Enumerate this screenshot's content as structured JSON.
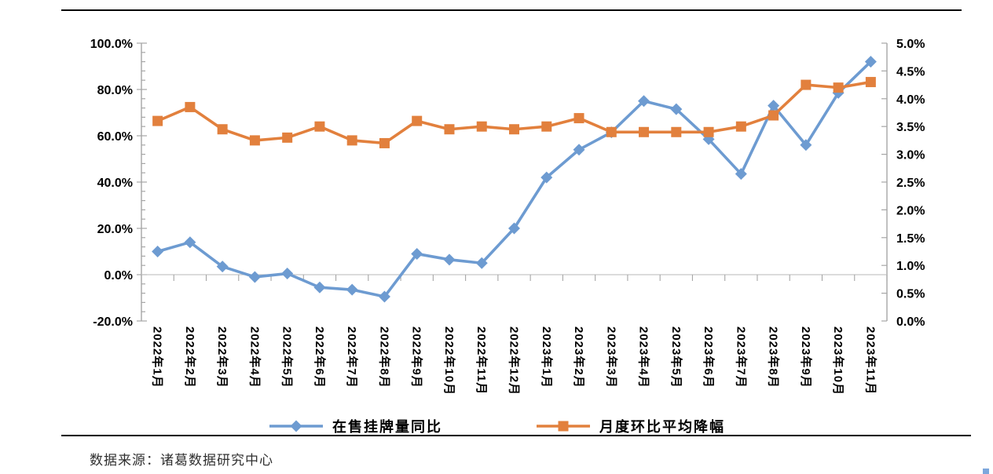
{
  "source_note": "数据来源：诸葛数据研究中心",
  "chart_data": {
    "type": "line",
    "title": "",
    "legend_position": "bottom",
    "grid": "zero-line-only",
    "categories": [
      "2022年1月",
      "2022年2月",
      "2022年3月",
      "2022年4月",
      "2022年5月",
      "2022年6月",
      "2022年7月",
      "2022年8月",
      "2022年9月",
      "2022年10月",
      "2022年11月",
      "2022年12月",
      "2023年1月",
      "2023年2月",
      "2023年3月",
      "2023年4月",
      "2023年5月",
      "2023年6月",
      "2023年7月",
      "2023年8月",
      "2023年9月",
      "2023年10月",
      "2023年11月"
    ],
    "series": [
      {
        "name": "在售挂牌量同比",
        "axis": "left",
        "marker": "diamond",
        "color": "#6d9bd1",
        "values": [
          10,
          14,
          3.5,
          -1,
          0.5,
          -5.5,
          -6.5,
          -9.5,
          9,
          6.5,
          5,
          20,
          42,
          54,
          61.5,
          75,
          71.5,
          58.5,
          43.5,
          73,
          56,
          78.5,
          92
        ]
      },
      {
        "name": "月度环比平均降幅",
        "axis": "right",
        "marker": "square",
        "color": "#e2803d",
        "values": [
          3.6,
          3.85,
          3.45,
          3.25,
          3.3,
          3.5,
          3.25,
          3.2,
          3.6,
          3.45,
          3.5,
          3.45,
          3.5,
          3.65,
          3.4,
          3.4,
          3.4,
          3.4,
          3.5,
          3.7,
          4.25,
          4.2,
          4.3
        ]
      }
    ],
    "left_axis": {
      "min": -20,
      "max": 100,
      "step": 20,
      "tick_labels": [
        "100.0%",
        "80.0%",
        "60.0%",
        "40.0%",
        "20.0%",
        "0.0%",
        "-20.0%"
      ],
      "unit": "%"
    },
    "right_axis": {
      "min": 0,
      "max": 5,
      "step": 0.5,
      "tick_labels": [
        "5.0%",
        "4.5%",
        "4.0%",
        "3.5%",
        "3.0%",
        "2.5%",
        "2.0%",
        "1.5%",
        "1.0%",
        "0.5%",
        "0.0%"
      ],
      "unit": "%"
    },
    "axis_color": "#a6a6a6",
    "tick_label_color": "#000000"
  }
}
